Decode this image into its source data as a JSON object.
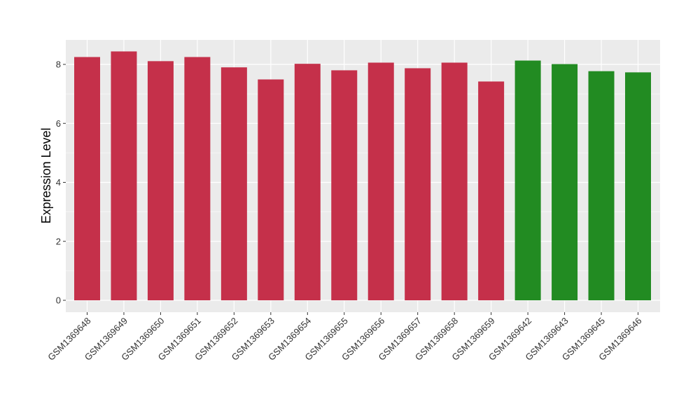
{
  "chart_data": {
    "type": "bar",
    "title": "",
    "xlabel": "",
    "ylabel": "Expression Level",
    "ylim": [
      0,
      8.86
    ],
    "yticks": [
      0,
      2,
      4,
      6,
      8
    ],
    "grid": true,
    "legend": "none",
    "categories": [
      "GSM1369648",
      "GSM1369649",
      "GSM1369650",
      "GSM1369651",
      "GSM1369652",
      "GSM1369653",
      "GSM1369654",
      "GSM1369655",
      "GSM1369656",
      "GSM1369657",
      "GSM1369658",
      "GSM1369659",
      "GSM1369642",
      "GSM1369643",
      "GSM1369645",
      "GSM1369646"
    ],
    "values": [
      8.25,
      8.44,
      8.11,
      8.25,
      7.9,
      7.49,
      8.02,
      7.8,
      8.06,
      7.87,
      8.06,
      7.42,
      8.13,
      8.01,
      7.77,
      7.73
    ],
    "bar_colors": [
      "#C5304A",
      "#C5304A",
      "#C5304A",
      "#C5304A",
      "#C5304A",
      "#C5304A",
      "#C5304A",
      "#C5304A",
      "#C5304A",
      "#C5304A",
      "#C5304A",
      "#C5304A",
      "#228B22",
      "#228B22",
      "#228B22",
      "#228B22"
    ],
    "panel_background": "#EBEBEB",
    "grid_color": "#FFFFFF"
  }
}
